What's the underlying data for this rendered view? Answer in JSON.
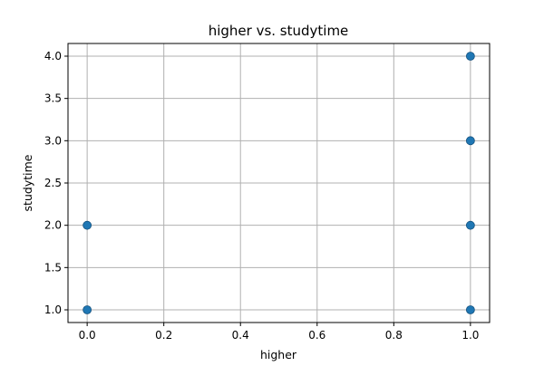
{
  "chart_data": {
    "type": "scatter",
    "title": "higher vs. studytime",
    "xlabel": "higher",
    "ylabel": "studytime",
    "xlim": [
      -0.05,
      1.05
    ],
    "ylim": [
      0.85,
      4.15
    ],
    "xticks": [
      0.0,
      0.2,
      0.4,
      0.6,
      0.8,
      1.0
    ],
    "xtick_labels": [
      "0.0",
      "0.2",
      "0.4",
      "0.6",
      "0.8",
      "1.0"
    ],
    "yticks": [
      1.0,
      1.5,
      2.0,
      2.5,
      3.0,
      3.5,
      4.0
    ],
    "ytick_labels": [
      "1.0",
      "1.5",
      "2.0",
      "2.5",
      "3.0",
      "3.5",
      "4.0"
    ],
    "grid": true,
    "marker_color": "#1f77b4",
    "series": [
      {
        "name": "studytime",
        "points": [
          {
            "x": 0,
            "y": 1
          },
          {
            "x": 0,
            "y": 2
          },
          {
            "x": 1,
            "y": 1
          },
          {
            "x": 1,
            "y": 2
          },
          {
            "x": 1,
            "y": 3
          },
          {
            "x": 1,
            "y": 4
          }
        ]
      }
    ]
  }
}
